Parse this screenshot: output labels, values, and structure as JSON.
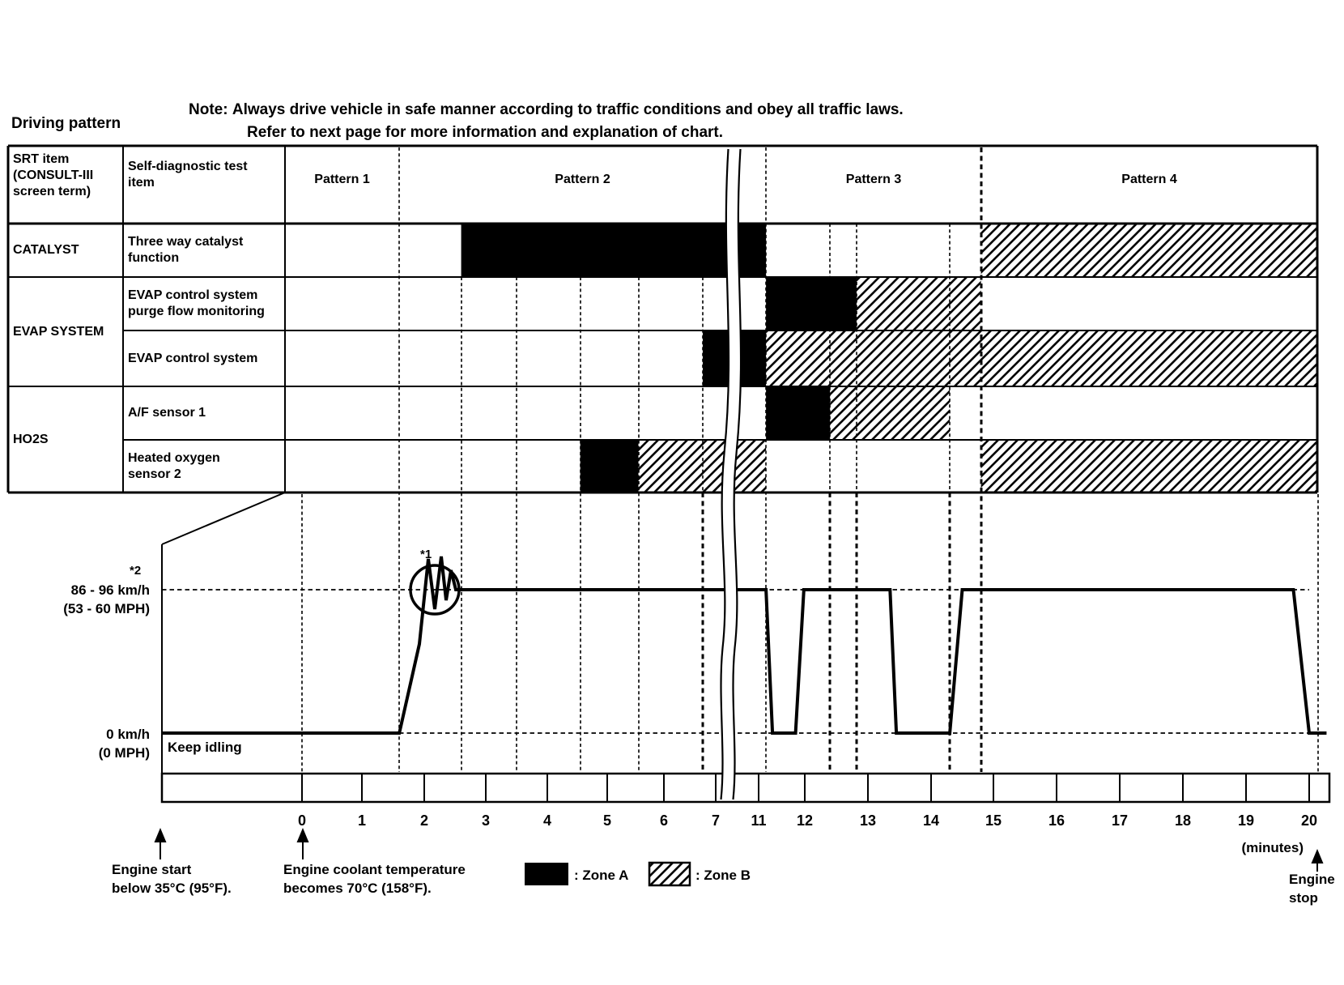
{
  "title": "Driving pattern",
  "note": {
    "prefix": "Note:",
    "line1": "Always drive vehicle in safe manner according to traffic conditions and obey all traffic laws.",
    "line2": "Refer to next page for more information and explanation of chart."
  },
  "table": {
    "srt_header": "SRT item\n(CONSULT-III\nscreen term)",
    "test_header": "Self-diagnostic test\nitem",
    "patterns": [
      "Pattern 1",
      "Pattern 2",
      "Pattern 3",
      "Pattern 4"
    ]
  },
  "chart_data": {
    "type": "gantt-timeline-with-speed-line",
    "time_axis": {
      "unit_label": "(minutes)",
      "ticks": [
        0,
        1,
        2,
        3,
        4,
        5,
        6,
        7,
        11,
        12,
        13,
        14,
        15,
        16,
        17,
        18,
        19,
        20
      ],
      "break_between": [
        7,
        11
      ]
    },
    "groups": [
      {
        "srt": "CATALYST",
        "tests": [
          {
            "label": "Three way catalyst\nfunction",
            "zone_a": [
              [
                2.6,
                11.16
              ]
            ],
            "zone_b": [
              [
                14.8,
                20.15
              ]
            ]
          }
        ]
      },
      {
        "srt": "EVAP SYSTEM",
        "tests": [
          {
            "label": "EVAP control system\npurge flow monitoring",
            "zone_a": [
              [
                11.16,
                12.82
              ]
            ],
            "zone_b": [
              [
                12.82,
                14.8
              ]
            ]
          },
          {
            "label": "EVAP control system",
            "zone_a": [
              [
                6.75,
                11.16
              ]
            ],
            "zone_b": [
              [
                11.16,
                20.15
              ]
            ]
          }
        ]
      },
      {
        "srt": "HO2S",
        "tests": [
          {
            "label": "A/F sensor 1",
            "zone_a": [
              [
                11.16,
                12.4
              ]
            ],
            "zone_b": [
              [
                12.4,
                14.3
              ]
            ]
          },
          {
            "label": "Heated oxygen\nsensor 2",
            "zone_a": [
              [
                4.55,
                5.55
              ]
            ],
            "zone_b": [
              [
                5.55,
                11.16
              ],
              [
                14.8,
                20.15
              ]
            ]
          }
        ]
      }
    ],
    "speed_profile": [
      [
        -2.4,
        0
      ],
      [
        1.6,
        0
      ],
      [
        2.1,
        1
      ],
      [
        11.16,
        1
      ],
      [
        11.3,
        0
      ],
      [
        11.8,
        0
      ],
      [
        11.98,
        1
      ],
      [
        13.35,
        1
      ],
      [
        13.45,
        0
      ],
      [
        14.3,
        0
      ],
      [
        14.5,
        1
      ],
      [
        19.75,
        1
      ],
      [
        20,
        0
      ],
      [
        20.3,
        0
      ]
    ],
    "speed_high_label": "86 - 96 km/h\n(53 - 60 MPH)",
    "speed_low_label": "0 km/h\n(0 MPH)",
    "keep_idling": "Keep idling"
  },
  "annotations": {
    "footnote1": "*1",
    "footnote2": "*2",
    "engine_start": "Engine start\nbelow 35°C (95°F).",
    "coolant": "Engine coolant temperature\nbecomes 70°C (158°F).",
    "engine_stop": "Engine\nstop",
    "minutes_label": "(minutes)"
  },
  "legend": {
    "zone_a": ": Zone A",
    "zone_b": ": Zone B"
  },
  "colors": {
    "ink": "#000000",
    "paper": "#ffffff"
  }
}
